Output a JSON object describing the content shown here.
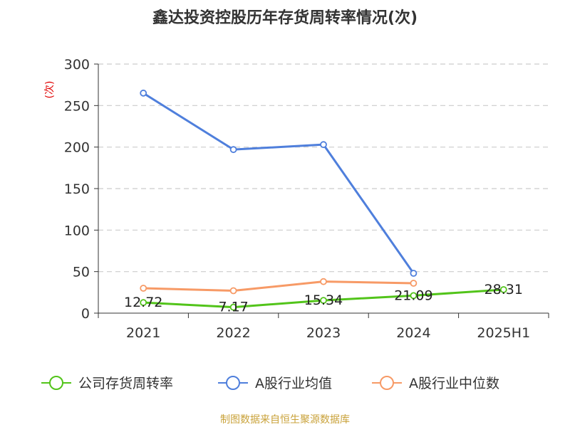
{
  "chart_data": {
    "type": "line",
    "title": "鑫达投资控股历年存货周转率情况(次)",
    "ylabel": "(次)",
    "xlabel": "",
    "categories": [
      "2021",
      "2022",
      "2023",
      "2024",
      "2025H1"
    ],
    "ylim": [
      0,
      300
    ],
    "yticks": [
      0,
      50,
      100,
      150,
      200,
      250,
      300
    ],
    "grid": true,
    "legend_position": "bottom",
    "series": [
      {
        "name": "公司存货周转率",
        "color": "#52c41a",
        "values": [
          12.72,
          7.17,
          15.34,
          21.09,
          28.31
        ],
        "labels": [
          "12.72",
          "7.17",
          "15.34",
          "21.09",
          "28.31"
        ]
      },
      {
        "name": "A股行业均值",
        "color": "#4f7fdc",
        "values": [
          265,
          197,
          203,
          48,
          null
        ]
      },
      {
        "name": "A股行业中位数",
        "color": "#f79a66",
        "values": [
          30,
          27,
          38,
          36,
          null
        ]
      }
    ]
  },
  "source": "制图数据来自恒生聚源数据库"
}
